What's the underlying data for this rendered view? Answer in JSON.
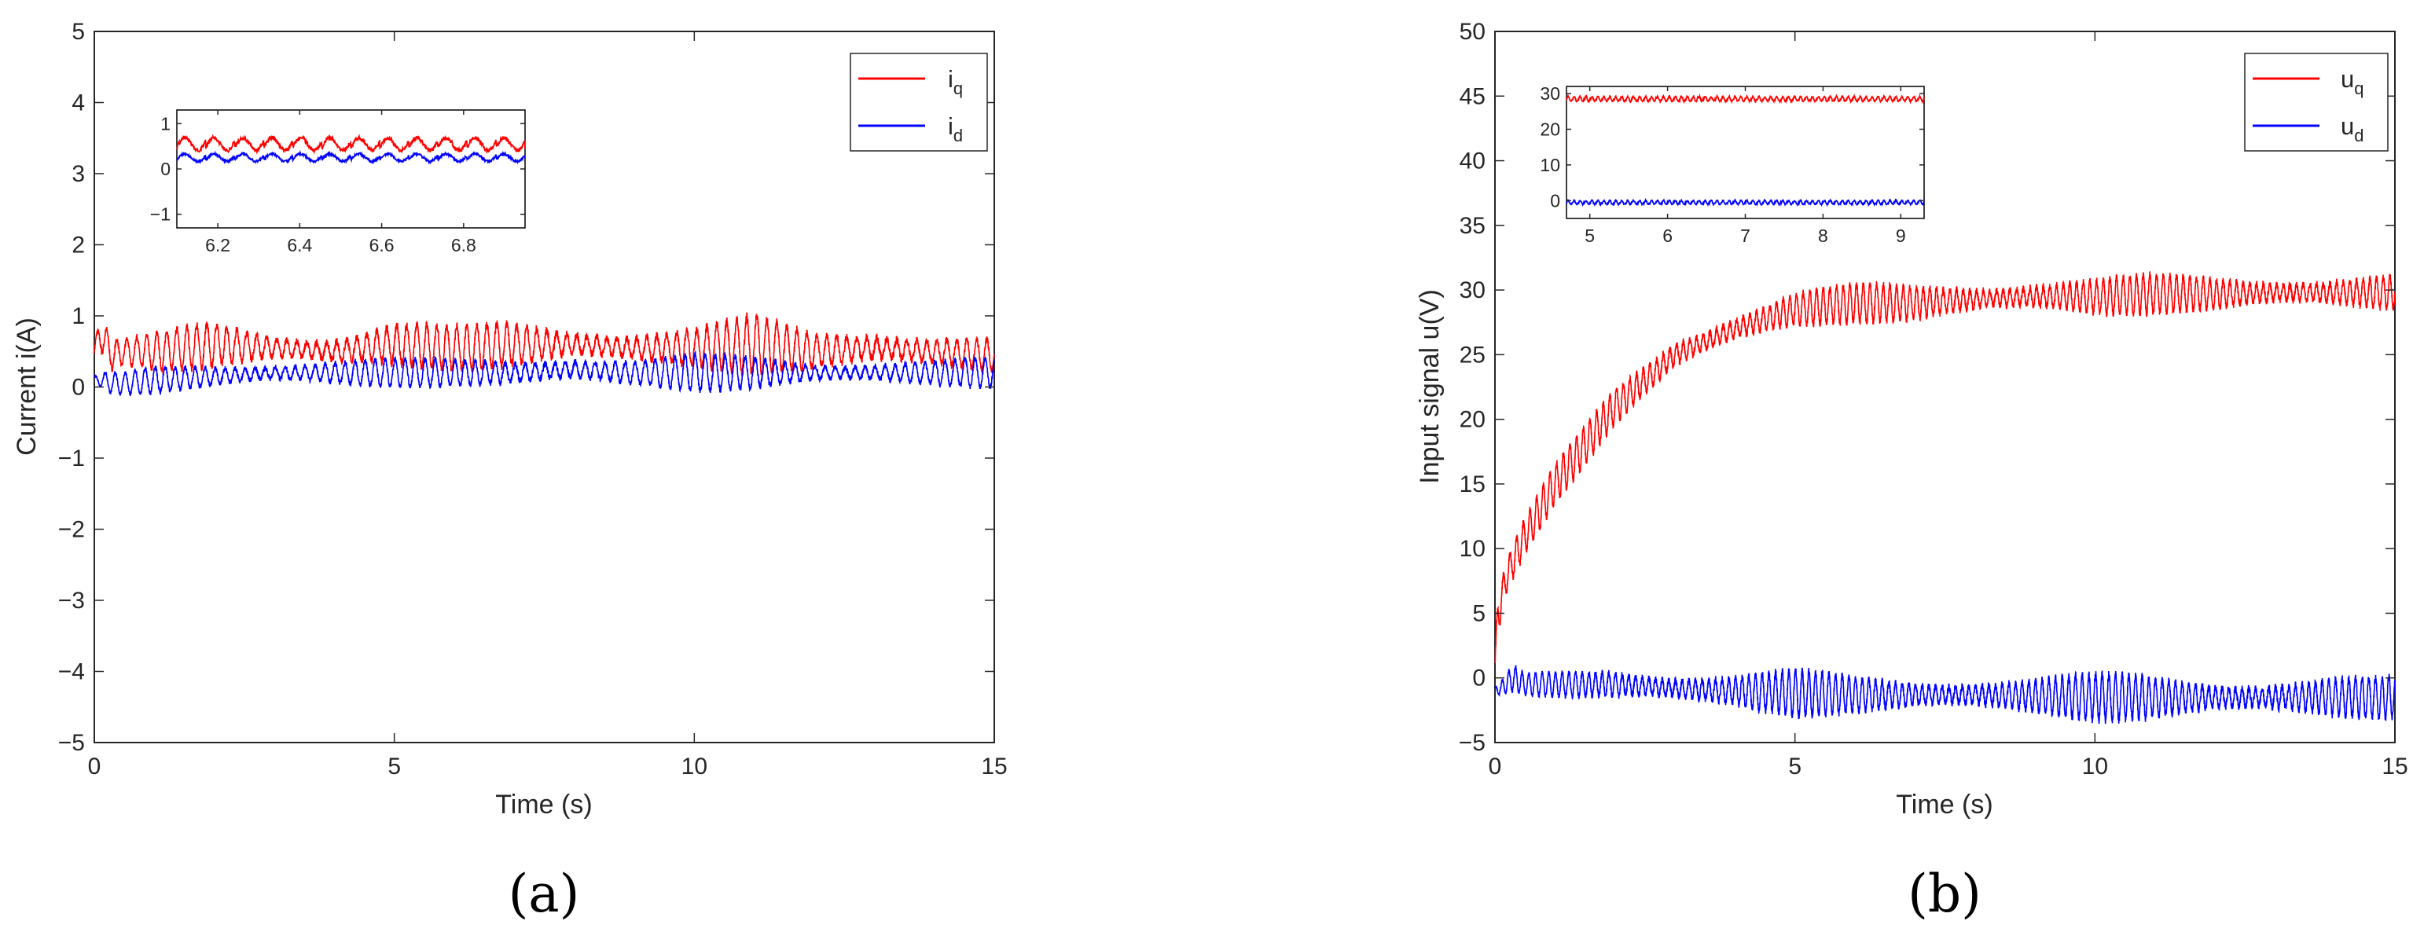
{
  "colors": {
    "q_series": "#ff0000",
    "d_series": "#0000ff",
    "axis": "#262626",
    "inset_axis": "#000000"
  },
  "chart_data": [
    {
      "type": "line",
      "panel_label": "(a)",
      "xlabel": "Time (s)",
      "ylabel": "Current i(A)",
      "xlim": [
        0,
        15
      ],
      "ylim": [
        -5,
        5
      ],
      "xticks": [
        0,
        5,
        10,
        15
      ],
      "yticks": [
        -5,
        -4,
        -3,
        -2,
        -1,
        0,
        1,
        2,
        3,
        4,
        5
      ],
      "grid": false,
      "legend_position": "top-right",
      "series": [
        {
          "name": "i",
          "subscript": "q",
          "color": "#ff0000",
          "description_values": {
            "x": [
              0,
              0.1,
              0.3,
              0.5,
              1,
              2,
              3,
              4,
              5,
              6,
              7,
              8,
              9,
              10,
              11,
              12,
              13,
              14,
              15
            ],
            "mean": [
              0.5,
              0.75,
              0.45,
              0.5,
              0.5,
              0.6,
              0.55,
              0.5,
              0.6,
              0.55,
              0.6,
              0.6,
              0.55,
              0.55,
              0.6,
              0.5,
              0.55,
              0.5,
              0.45
            ],
            "amplitude": [
              0.15,
              0.3,
              0.25,
              0.2,
              0.25,
              0.35,
              0.25,
              0.3,
              0.35,
              0.3,
              0.35,
              0.3,
              0.3,
              0.3,
              0.4,
              0.3,
              0.35,
              0.3,
              0.25
            ]
          }
        },
        {
          "name": "i",
          "subscript": "d",
          "color": "#0000ff",
          "description_values": {
            "x": [
              0,
              0.1,
              0.3,
              0.5,
              1,
              2,
              3,
              4,
              5,
              6,
              7,
              8,
              9,
              10,
              11,
              12,
              13,
              14,
              15
            ],
            "mean": [
              0.1,
              0.1,
              0.05,
              0.05,
              0.1,
              0.15,
              0.2,
              0.2,
              0.2,
              0.2,
              0.2,
              0.25,
              0.2,
              0.2,
              0.2,
              0.2,
              0.2,
              0.2,
              0.2
            ],
            "amplitude": [
              0.05,
              0.1,
              0.15,
              0.15,
              0.2,
              0.2,
              0.2,
              0.2,
              0.2,
              0.2,
              0.25,
              0.25,
              0.2,
              0.25,
              0.25,
              0.2,
              0.2,
              0.2,
              0.2
            ]
          }
        }
      ],
      "inset": {
        "xlim": [
          6.1,
          6.95
        ],
        "ylim": [
          -1.3,
          1.3
        ],
        "xticks": [
          6.2,
          6.4,
          6.6,
          6.8
        ],
        "yticks": [
          -1,
          0,
          1
        ],
        "series": [
          {
            "name": "i",
            "subscript": "q",
            "color": "#ff0000",
            "mean": 0.55,
            "amplitude": 0.25,
            "cycles": 12
          },
          {
            "name": "i",
            "subscript": "d",
            "color": "#0000ff",
            "mean": 0.25,
            "amplitude": 0.15,
            "cycles": 12
          }
        ]
      }
    },
    {
      "type": "line",
      "panel_label": "(b)",
      "xlabel": "Time (s)",
      "ylabel": "Input signal u(V)",
      "xlim": [
        0,
        15
      ],
      "ylim": [
        -5,
        50
      ],
      "xticks": [
        0,
        5,
        10,
        15
      ],
      "yticks": [
        -5,
        0,
        5,
        10,
        15,
        20,
        25,
        30,
        35,
        40,
        45,
        50
      ],
      "grid": false,
      "legend_position": "top-right",
      "series": [
        {
          "name": "u",
          "subscript": "q",
          "color": "#ff0000",
          "description_values": {
            "x": [
              0,
              0.05,
              0.2,
              0.5,
              1,
              1.5,
              2,
              2.5,
              3,
              4,
              5,
              6,
              7,
              8,
              9,
              10,
              11,
              12,
              13,
              14,
              15
            ],
            "mean": [
              1,
              5,
              8,
              11,
              15,
              18,
              21,
              23,
              25,
              27,
              28.5,
              29,
              29,
              29.3,
              29.5,
              29.5,
              29.7,
              29.7,
              29.8,
              29.8,
              29.8
            ],
            "amplitude": [
              1,
              2,
              1.5,
              1.5,
              1.5,
              1.5,
              1.5,
              1.5,
              1.5,
              1.5,
              1.5,
              1.5,
              1.5,
              1.5,
              1.5,
              1.5,
              1.5,
              1.5,
              1.5,
              1.5,
              1.5
            ]
          }
        },
        {
          "name": "u",
          "subscript": "d",
          "color": "#0000ff",
          "description_values": {
            "x": [
              0,
              0.1,
              0.3,
              0.5,
              1,
              2,
              3,
              4,
              5,
              6,
              7,
              8,
              9,
              10,
              11,
              12,
              13,
              14,
              15
            ],
            "mean": [
              -1,
              -0.8,
              0,
              -0.5,
              -0.5,
              -0.5,
              -0.8,
              -1,
              -1.2,
              -1.3,
              -1.3,
              -1.3,
              -1.4,
              -1.5,
              -1.5,
              -1.5,
              -1.5,
              -1.5,
              -1.5
            ],
            "amplitude": [
              0.3,
              0.5,
              1.0,
              0.8,
              1.0,
              1.5,
              1.5,
              1.5,
              1.8,
              1.5,
              1.5,
              1.6,
              1.6,
              1.8,
              1.8,
              1.7,
              1.7,
              1.7,
              1.6
            ]
          }
        }
      ],
      "inset": {
        "xlim": [
          4.7,
          9.3
        ],
        "ylim": [
          -5,
          32
        ],
        "xticks": [
          5,
          6,
          7,
          8,
          9
        ],
        "yticks": [
          0,
          10,
          20,
          30
        ],
        "series": [
          {
            "name": "u",
            "subscript": "q",
            "color": "#ff0000",
            "mean": 28.5,
            "amplitude": 1.2,
            "cycles": 60
          },
          {
            "name": "u",
            "subscript": "d",
            "color": "#0000ff",
            "mean": -0.5,
            "amplitude": 1.0,
            "cycles": 60
          }
        ]
      }
    }
  ]
}
